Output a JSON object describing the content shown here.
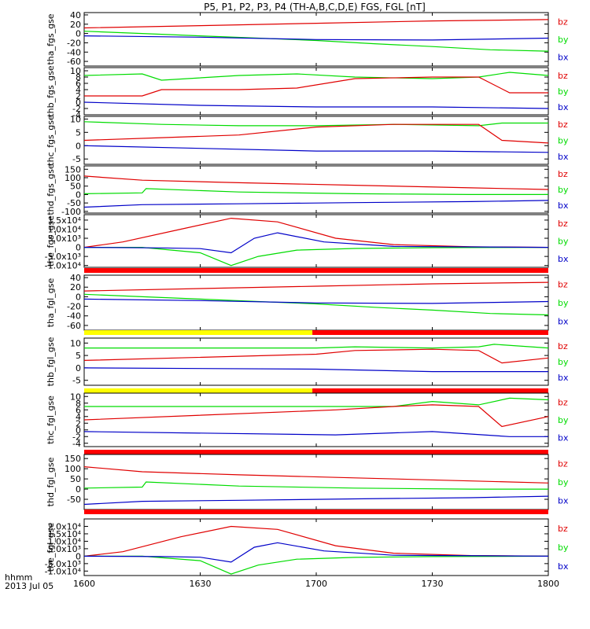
{
  "chart_data": {
    "type": "line",
    "title": "P5, P1, P2, P3, P4 (TH-A,B,C,D,E) FGS, FGL [nT]",
    "x_time_label_line1": "hhmm",
    "x_time_label_line2": "2013 Jul 05",
    "x_ticks": [
      "1600",
      "1630",
      "1700",
      "1730",
      "1800"
    ],
    "x_range_hhmm": [
      "1600",
      "1800"
    ],
    "colors": {
      "bx": "#0000c8",
      "by": "#00dc00",
      "bz": "#e00000",
      "bar_red": "#ff0000",
      "bar_yellow": "#ffff00"
    },
    "panels": [
      {
        "ylabel": "tha_fgs_gse",
        "ylim": [
          -70,
          45
        ],
        "yticks": [
          "40",
          "20",
          "0",
          "-20",
          "-40",
          "-60"
        ],
        "legend": [
          "bz",
          "by",
          "bx"
        ],
        "series": [
          {
            "name": "bz",
            "x": [
              0,
              30,
              60,
              90,
              120
            ],
            "y": [
              12,
              17,
              22,
              27,
              30
            ]
          },
          {
            "name": "by",
            "x": [
              0,
              15,
              30,
              45,
              60,
              75,
              90,
              105,
              120
            ],
            "y": [
              5,
              0,
              -5,
              -10,
              -15,
              -22,
              -28,
              -35,
              -38
            ]
          },
          {
            "name": "bx",
            "x": [
              0,
              30,
              60,
              90,
              120
            ],
            "y": [
              -5,
              -8,
              -13,
              -14,
              -10
            ]
          }
        ]
      },
      {
        "ylabel": "thb_fgs_gse",
        "ylim": [
          -4,
          11
        ],
        "yticks": [
          "10",
          "8",
          "6",
          "4",
          "2",
          "0",
          "-2",
          "-4"
        ],
        "legend": [
          "bz",
          "by",
          "bx"
        ],
        "series": [
          {
            "name": "by",
            "x": [
              0,
              15,
              20,
              40,
              55,
              70,
              90,
              102,
              110,
              120
            ],
            "y": [
              8.5,
              9,
              7,
              8.5,
              9,
              8,
              7.5,
              8,
              9.5,
              8.5
            ]
          },
          {
            "name": "bz",
            "x": [
              0,
              15,
              20,
              40,
              55,
              70,
              90,
              102,
              110,
              120
            ],
            "y": [
              2,
              2,
              4,
              4,
              4.5,
              7.5,
              8,
              8,
              3,
              3
            ]
          },
          {
            "name": "bx",
            "x": [
              0,
              30,
              60,
              90,
              120
            ],
            "y": [
              0,
              -1,
              -1.5,
              -1.5,
              -2
            ]
          }
        ]
      },
      {
        "ylabel": "thc_fgs_gse",
        "ylim": [
          -7,
          11
        ],
        "yticks": [
          "10",
          "5",
          "0",
          "-5"
        ],
        "legend": [
          "bz",
          "by",
          "bx"
        ],
        "series": [
          {
            "name": "by",
            "x": [
              0,
              20,
              40,
              60,
              80,
              102,
              108,
              120
            ],
            "y": [
              9,
              8,
              7.5,
              7.5,
              8,
              7.5,
              8.5,
              8.5
            ]
          },
          {
            "name": "bz",
            "x": [
              0,
              20,
              40,
              60,
              80,
              102,
              108,
              120
            ],
            "y": [
              2,
              3,
              4,
              7,
              8,
              8,
              2,
              1
            ]
          },
          {
            "name": "bx",
            "x": [
              0,
              30,
              60,
              90,
              120
            ],
            "y": [
              0,
              -1,
              -2,
              -2,
              -2.5
            ]
          }
        ]
      },
      {
        "ylabel": "thd_fgs_gse",
        "ylim": [
          -110,
          170
        ],
        "yticks": [
          "150",
          "100",
          "50",
          "0",
          "-50",
          "-100"
        ],
        "legend": [
          "bz",
          "by",
          "bx"
        ],
        "series": [
          {
            "name": "bz",
            "x": [
              0,
              15,
              40,
              70,
              100,
              120
            ],
            "y": [
              110,
              85,
              70,
              55,
              40,
              30
            ]
          },
          {
            "name": "by",
            "x": [
              0,
              15,
              16,
              40,
              70,
              100,
              120
            ],
            "y": [
              5,
              10,
              35,
              15,
              5,
              0,
              0
            ]
          },
          {
            "name": "bx",
            "x": [
              0,
              15,
              40,
              70,
              100,
              120
            ],
            "y": [
              -75,
              -60,
              -55,
              -48,
              -42,
              -35
            ]
          }
        ]
      },
      {
        "ylabel": "the_fgs_gse",
        "ylim": [
          -11000,
          18000
        ],
        "yticks": [
          "1.5x10⁴",
          "1.0x10⁴",
          "5.0x10³",
          "0",
          "-5.0x10³",
          "-1.0x10⁴"
        ],
        "legend": [
          "bz",
          "by",
          "bx"
        ],
        "series": [
          {
            "name": "bz",
            "x": [
              0,
              10,
              25,
              38,
              50,
              65,
              80,
              100,
              120
            ],
            "y": [
              0,
              3000,
              10000,
              16000,
              14000,
              5000,
              1500,
              300,
              0
            ]
          },
          {
            "name": "by",
            "x": [
              0,
              15,
              30,
              38,
              45,
              55,
              70,
              90,
              120
            ],
            "y": [
              0,
              0,
              -3000,
              -10000,
              -5000,
              -1500,
              -600,
              -200,
              0
            ]
          },
          {
            "name": "bx",
            "x": [
              0,
              20,
              30,
              38,
              44,
              50,
              62,
              80,
              120
            ],
            "y": [
              0,
              -300,
              -700,
              -3000,
              5000,
              8000,
              3000,
              500,
              0
            ]
          }
        ],
        "status_bar": [
          {
            "from": 0,
            "to": 120,
            "color": "red"
          }
        ]
      },
      {
        "ylabel": "tha_fgl_gse",
        "ylim": [
          -70,
          45
        ],
        "yticks": [
          "40",
          "20",
          "0",
          "-20",
          "-40",
          "-60"
        ],
        "legend": [
          "bz",
          "by",
          "bx"
        ],
        "series": [
          {
            "name": "bz",
            "x": [
              0,
              30,
              60,
              90,
              120
            ],
            "y": [
              12,
              17,
              22,
              27,
              30
            ]
          },
          {
            "name": "by",
            "x": [
              0,
              15,
              30,
              45,
              60,
              75,
              90,
              105,
              120
            ],
            "y": [
              5,
              0,
              -5,
              -10,
              -15,
              -22,
              -28,
              -35,
              -38
            ]
          },
          {
            "name": "bx",
            "x": [
              0,
              30,
              60,
              90,
              120
            ],
            "y": [
              -5,
              -8,
              -13,
              -14,
              -10
            ]
          }
        ],
        "status_bar": [
          {
            "from": 0,
            "to": 59,
            "color": "yellow"
          },
          {
            "from": 59,
            "to": 120,
            "color": "red"
          }
        ]
      },
      {
        "ylabel": "thb_fgl_gse",
        "ylim": [
          -7,
          12
        ],
        "yticks": [
          "10",
          "5",
          "0",
          "-5"
        ],
        "legend": [
          "bz",
          "by",
          "bx"
        ],
        "series": [
          {
            "name": "by",
            "x": [
              0,
              60,
              70,
              90,
              102,
              106,
              120
            ],
            "y": [
              8,
              8,
              8.5,
              8,
              8.5,
              9.5,
              8
            ]
          },
          {
            "name": "bz",
            "x": [
              0,
              60,
              70,
              90,
              102,
              108,
              120
            ],
            "y": [
              3,
              5.5,
              7,
              7.5,
              7,
              2,
              4
            ]
          },
          {
            "name": "bx",
            "x": [
              0,
              60,
              90,
              120
            ],
            "y": [
              0,
              -0.5,
              -1.5,
              -1.5
            ]
          }
        ],
        "status_bar": [
          {
            "from": 0,
            "to": 59,
            "color": "yellow"
          },
          {
            "from": 59,
            "to": 120,
            "color": "red"
          }
        ]
      },
      {
        "ylabel": "thc_fgl_gse",
        "ylim": [
          -5,
          11
        ],
        "yticks": [
          "10",
          "8",
          "6",
          "4",
          "2",
          "0",
          "-2",
          "-4"
        ],
        "legend": [
          "bz",
          "by",
          "bx"
        ],
        "series": [
          {
            "name": "by",
            "x": [
              0,
              65,
              80,
              90,
              102,
              110,
              120
            ],
            "y": [
              7,
              7,
              7,
              8.5,
              7.5,
              9.5,
              9
            ]
          },
          {
            "name": "bz",
            "x": [
              0,
              65,
              80,
              90,
              102,
              108,
              120
            ],
            "y": [
              3,
              6,
              7,
              7.5,
              7,
              1,
              4
            ]
          },
          {
            "name": "bx",
            "x": [
              0,
              65,
              90,
              110,
              120
            ],
            "y": [
              -0.5,
              -1.5,
              -0.5,
              -2,
              -2
            ]
          }
        ],
        "status_bar": [
          {
            "from": 0,
            "to": 120,
            "color": "red"
          }
        ]
      },
      {
        "ylabel": "thd_fgl_gse",
        "ylim": [
          -100,
          170
        ],
        "yticks": [
          "150",
          "100",
          "50",
          "0",
          "-50"
        ],
        "legend": [
          "bz",
          "by",
          "bx"
        ],
        "series": [
          {
            "name": "bz",
            "x": [
              0,
              15,
              40,
              70,
              100,
              120
            ],
            "y": [
              110,
              85,
              70,
              55,
              40,
              30
            ]
          },
          {
            "name": "by",
            "x": [
              0,
              15,
              16,
              40,
              70,
              100,
              120
            ],
            "y": [
              5,
              10,
              35,
              15,
              5,
              0,
              0
            ]
          },
          {
            "name": "bx",
            "x": [
              0,
              15,
              40,
              70,
              100,
              120
            ],
            "y": [
              -75,
              -60,
              -55,
              -48,
              -42,
              -35
            ]
          }
        ],
        "status_bar": [
          {
            "from": 0,
            "to": 120,
            "color": "red"
          }
        ]
      },
      {
        "ylabel": "the_fgl_gse",
        "ylim": [
          -13000,
          25000
        ],
        "yticks": [
          "2.0x10⁴",
          "1.5x10⁴",
          "1.0x10⁴",
          "5.0x10³",
          "0",
          "-5.0x10³",
          "-1.0x10⁴"
        ],
        "legend": [
          "bz",
          "by",
          "bx"
        ],
        "series": [
          {
            "name": "bz",
            "x": [
              0,
              10,
              25,
              38,
              50,
              65,
              80,
              100,
              120
            ],
            "y": [
              0,
              3000,
              13000,
              20000,
              18000,
              7000,
              2000,
              400,
              0
            ]
          },
          {
            "name": "by",
            "x": [
              0,
              15,
              30,
              38,
              45,
              55,
              70,
              90,
              120
            ],
            "y": [
              0,
              0,
              -3000,
              -12000,
              -6000,
              -2000,
              -800,
              -300,
              0
            ]
          },
          {
            "name": "bx",
            "x": [
              0,
              20,
              30,
              38,
              44,
              50,
              62,
              80,
              120
            ],
            "y": [
              0,
              -300,
              -700,
              -4000,
              6000,
              9000,
              3500,
              600,
              0
            ]
          }
        ]
      }
    ]
  }
}
